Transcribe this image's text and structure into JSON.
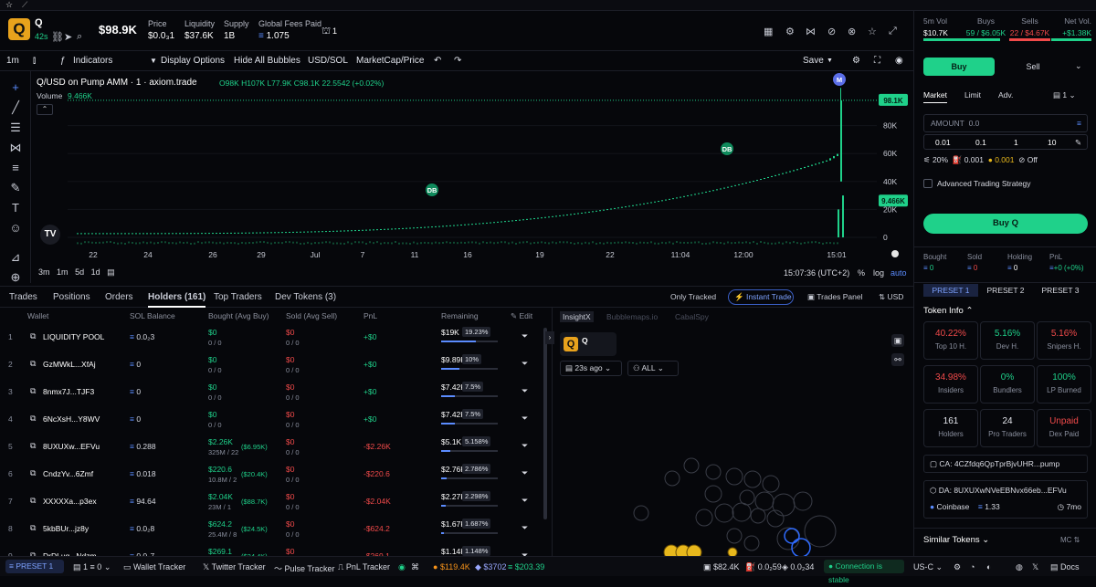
{
  "header": {
    "name": "Q",
    "age": "42s",
    "mcap": "$98.9K",
    "stats": [
      {
        "label": "Price",
        "value": "$0.0₃1"
      },
      {
        "label": "Liquidity",
        "value": "$37.6K"
      },
      {
        "label": "Supply",
        "value": "1B"
      },
      {
        "label": "Global Fees Paid",
        "value": "1.075"
      }
    ],
    "bookmark_count": "1"
  },
  "toolbar": {
    "interval": "1m",
    "indicators": "Indicators",
    "display": "Display Options",
    "hide": "Hide All Bubbles",
    "quote": "USD/SOL",
    "metric": "MarketCap/Price",
    "save": "Save"
  },
  "chart": {
    "title": "Q/USD on Pump AMM · 1 · axiom.trade",
    "ohlc": "O98K H107K L77.9K C98.1K 22.5542 (+0.02%)",
    "volume_label": "Volume",
    "volume_value": "9.466K",
    "price_tag": "98.1K",
    "vol_tag": "9.466K",
    "yticks": [
      "80K",
      "60K",
      "40K",
      "20K",
      "0"
    ],
    "xticks": [
      "22",
      "24",
      "26",
      "29",
      "Jul",
      "7",
      "11",
      "16",
      "19",
      "22",
      "11:04",
      "12:00",
      "15:01"
    ],
    "ranges": [
      "3m",
      "1m",
      "5d",
      "1d"
    ],
    "clock": "15:07:36 (UTC+2)",
    "scale": "%",
    "log": "log",
    "auto": "auto",
    "markers": [
      "DB",
      "DB",
      "M"
    ]
  },
  "bottom_tabs": {
    "trades": "Trades",
    "positions": "Positions",
    "orders": "Orders",
    "holders": "Holders (161)",
    "top_traders": "Top Traders",
    "dev_tokens": "Dev Tokens (3)",
    "only_tracked": "Only Tracked",
    "instant_trade": "Instant Trade",
    "trades_panel": "Trades Panel",
    "currency": "USD"
  },
  "holders": {
    "headers": [
      "Wallet",
      "SOL Balance",
      "Bought (Avg Buy)",
      "Sold (Avg Sell)",
      "PnL",
      "Remaining",
      "Edit"
    ],
    "rows": [
      {
        "n": "1",
        "wallet": "LIQUIDITY POOL",
        "sol": "0.0₂3",
        "bought": "$0",
        "bought_sub": "0 / 0",
        "bought_avg": "",
        "sold": "$0",
        "sold_sub": "0 / 0",
        "pnl": "+$0",
        "rem": "$19K",
        "pct": "19.23%",
        "frac": 0.19
      },
      {
        "n": "2",
        "wallet": "GzMWkL...XfAj",
        "sol": "0",
        "bought": "$0",
        "bought_sub": "0 / 0",
        "bought_avg": "",
        "sold": "$0",
        "sold_sub": "0 / 0",
        "pnl": "+$0",
        "rem": "$9.89K",
        "pct": "10%",
        "frac": 0.1
      },
      {
        "n": "3",
        "wallet": "8nmx7J...TJF3",
        "sol": "0",
        "bought": "$0",
        "bought_sub": "0 / 0",
        "bought_avg": "",
        "sold": "$0",
        "sold_sub": "0 / 0",
        "pnl": "+$0",
        "rem": "$7.42K",
        "pct": "7.5%",
        "frac": 0.075
      },
      {
        "n": "4",
        "wallet": "6NcXsH...Y8WV",
        "sol": "0",
        "bought": "$0",
        "bought_sub": "0 / 0",
        "bought_avg": "",
        "sold": "$0",
        "sold_sub": "0 / 0",
        "pnl": "+$0",
        "rem": "$7.42K",
        "pct": "7.5%",
        "frac": 0.075
      },
      {
        "n": "5",
        "wallet": "8UXUXw...EFVu",
        "sol": "0.288",
        "bought": "$2.26K",
        "bought_sub": "325M / 22",
        "bought_avg": "($6.95K)",
        "sold": "$0",
        "sold_sub": "0 / 0",
        "pnl": "-$2.26K",
        "rem": "$5.1K",
        "pct": "5.158%",
        "frac": 0.052
      },
      {
        "n": "6",
        "wallet": "CndzYv...6Zmf",
        "sol": "0.018",
        "bought": "$220.6",
        "bought_sub": "10.8M / 2",
        "bought_avg": "($20.4K)",
        "sold": "$0",
        "sold_sub": "0 / 0",
        "pnl": "-$220.6",
        "rem": "$2.76K",
        "pct": "2.786%",
        "frac": 0.028
      },
      {
        "n": "7",
        "wallet": "XXXXXa...p3ex",
        "sol": "94.64",
        "bought": "$2.04K",
        "bought_sub": "23M / 1",
        "bought_avg": "($88.7K)",
        "sold": "$0",
        "sold_sub": "0 / 0",
        "pnl": "-$2.04K",
        "rem": "$2.27K",
        "pct": "2.298%",
        "frac": 0.023
      },
      {
        "n": "8",
        "wallet": "5kbBUr...jz8y",
        "sol": "0.0₂8",
        "bought": "$624.2",
        "bought_sub": "25.4M / 8",
        "bought_avg": "($24.5K)",
        "sold": "$0",
        "sold_sub": "0 / 0",
        "pnl": "-$624.2",
        "rem": "$1.67K",
        "pct": "1.687%",
        "frac": 0.017
      },
      {
        "n": "9",
        "wallet": "DrDLuq...Ndzm",
        "sol": "0.0₂7",
        "bought": "$269.1",
        "bought_sub": "",
        "bought_avg": "($24.4K)",
        "sold": "$0",
        "sold_sub": "",
        "pnl": "-$269.1",
        "rem": "$1.14K",
        "pct": "1.148%",
        "frac": 0.011
      }
    ]
  },
  "bubble": {
    "tabs": [
      "InsightX",
      "Bubblemaps.io",
      "CabalSpy"
    ],
    "token": "Q",
    "time": "23s ago",
    "filter": "ALL"
  },
  "right": {
    "vol_label": "5m Vol",
    "vol": "$10.7K",
    "buys_label": "Buys",
    "buys": "59 / $6.05K",
    "sells_label": "Sells",
    "sells": "22 / $4.67K",
    "net_label": "Net Vol.",
    "net": "+$1.38K",
    "buy_tab": "Buy",
    "sell_tab": "Sell",
    "market": "Market",
    "limit": "Limit",
    "adv": "Adv.",
    "wallets": "1",
    "amount_label": "AMOUNT",
    "amount_placeholder": "0.0",
    "presets_amt": [
      "0.01",
      "0.1",
      "1",
      "10"
    ],
    "slippage": "20%",
    "prio": "0.001",
    "bribe": "0.001",
    "mev": "Off",
    "advanced": "Advanced Trading Strategy",
    "buy_button": "Buy Q",
    "pos": [
      {
        "label": "Bought",
        "value": "0"
      },
      {
        "label": "Sold",
        "value": "0"
      },
      {
        "label": "Holding",
        "value": "0"
      },
      {
        "label": "PnL",
        "value": "+0 (+0%)"
      }
    ],
    "presets": [
      "PRESET 1",
      "PRESET 2",
      "PRESET 3"
    ],
    "token_info": "Token Info",
    "stats": [
      {
        "v": "40.22%",
        "l": "Top 10 H.",
        "c": "#f14a4a"
      },
      {
        "v": "5.16%",
        "l": "Dev H.",
        "c": "#1fd18a"
      },
      {
        "v": "5.16%",
        "l": "Snipers H.",
        "c": "#f14a4a"
      },
      {
        "v": "34.98%",
        "l": "Insiders",
        "c": "#f14a4a"
      },
      {
        "v": "0%",
        "l": "Bundlers",
        "c": "#1fd18a"
      },
      {
        "v": "100%",
        "l": "LP Burned",
        "c": "#1fd18a"
      },
      {
        "v": "161",
        "l": "Holders",
        "c": "#e3e5ec"
      },
      {
        "v": "24",
        "l": "Pro Traders",
        "c": "#e3e5ec"
      },
      {
        "v": "Unpaid",
        "l": "Dex Paid",
        "c": "#f14a4a"
      }
    ],
    "ca": "CA: 4CZfdq6QpTprBjvUHR...pump",
    "da": "DA: 8UXUXwNVeEBNvx66eb...EFVu",
    "coinbase": "Coinbase",
    "da_amt": "1.33",
    "da_age": "7mo",
    "similar": "Similar Tokens",
    "mc": "MC"
  },
  "footer": {
    "preset": "PRESET 1",
    "wallets": "1",
    "sol_amt": "0",
    "wallet_tracker": "Wallet Tracker",
    "twitter_tracker": "Twitter Tracker",
    "pulse_tracker": "Pulse Tracker",
    "pnl_tracker": "PnL Tracker",
    "btc": "$119.4K",
    "eth": "$3702",
    "sol": "$203.39",
    "v1": "$82.4K",
    "v2": "0.0₂59",
    "v3": "0.0₂34",
    "conn": "Connection is stable",
    "region": "US-C",
    "docs": "Docs"
  }
}
